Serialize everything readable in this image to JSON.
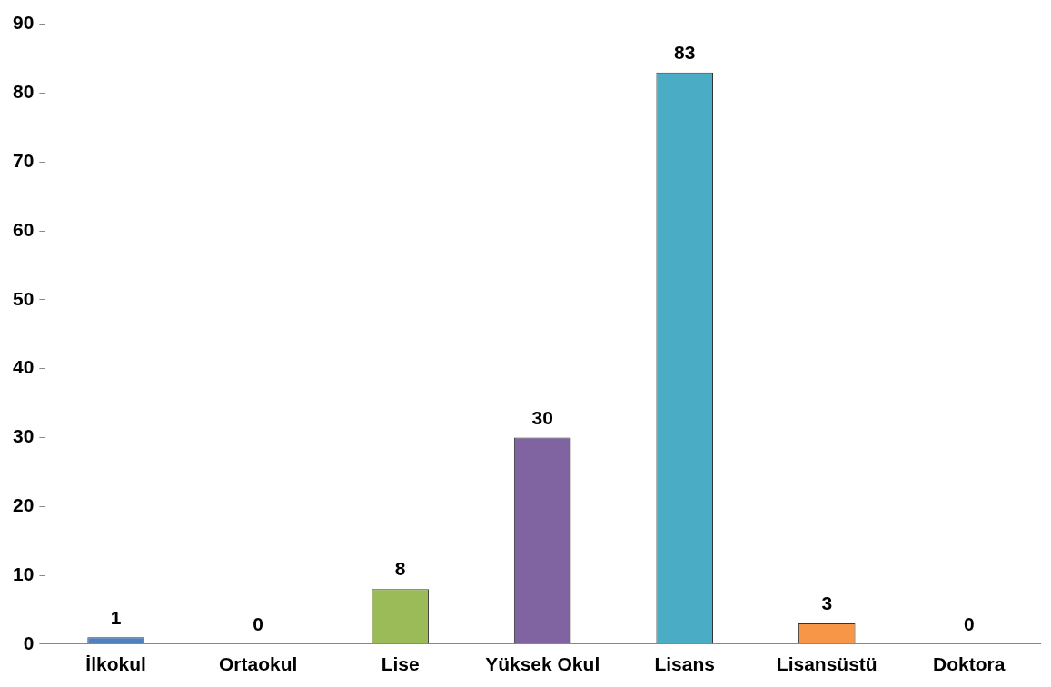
{
  "chart_data": {
    "type": "bar",
    "categories": [
      "İlkokul",
      "Ortaokul",
      "Lise",
      "Yüksek Okul",
      "Lisans",
      "Lisansüstü",
      "Doktora"
    ],
    "values": [
      1,
      0,
      8,
      30,
      83,
      3,
      0
    ],
    "colors": [
      "#4f81bd",
      "#c0504d",
      "#9bbb59",
      "#8064a2",
      "#4bacc6",
      "#f79646",
      "#4f81bd"
    ],
    "ylim": [
      0,
      90
    ],
    "yticks": [
      0,
      10,
      20,
      30,
      40,
      50,
      60,
      70,
      80,
      90
    ],
    "grid": false,
    "legend": false,
    "data_labels": true
  }
}
